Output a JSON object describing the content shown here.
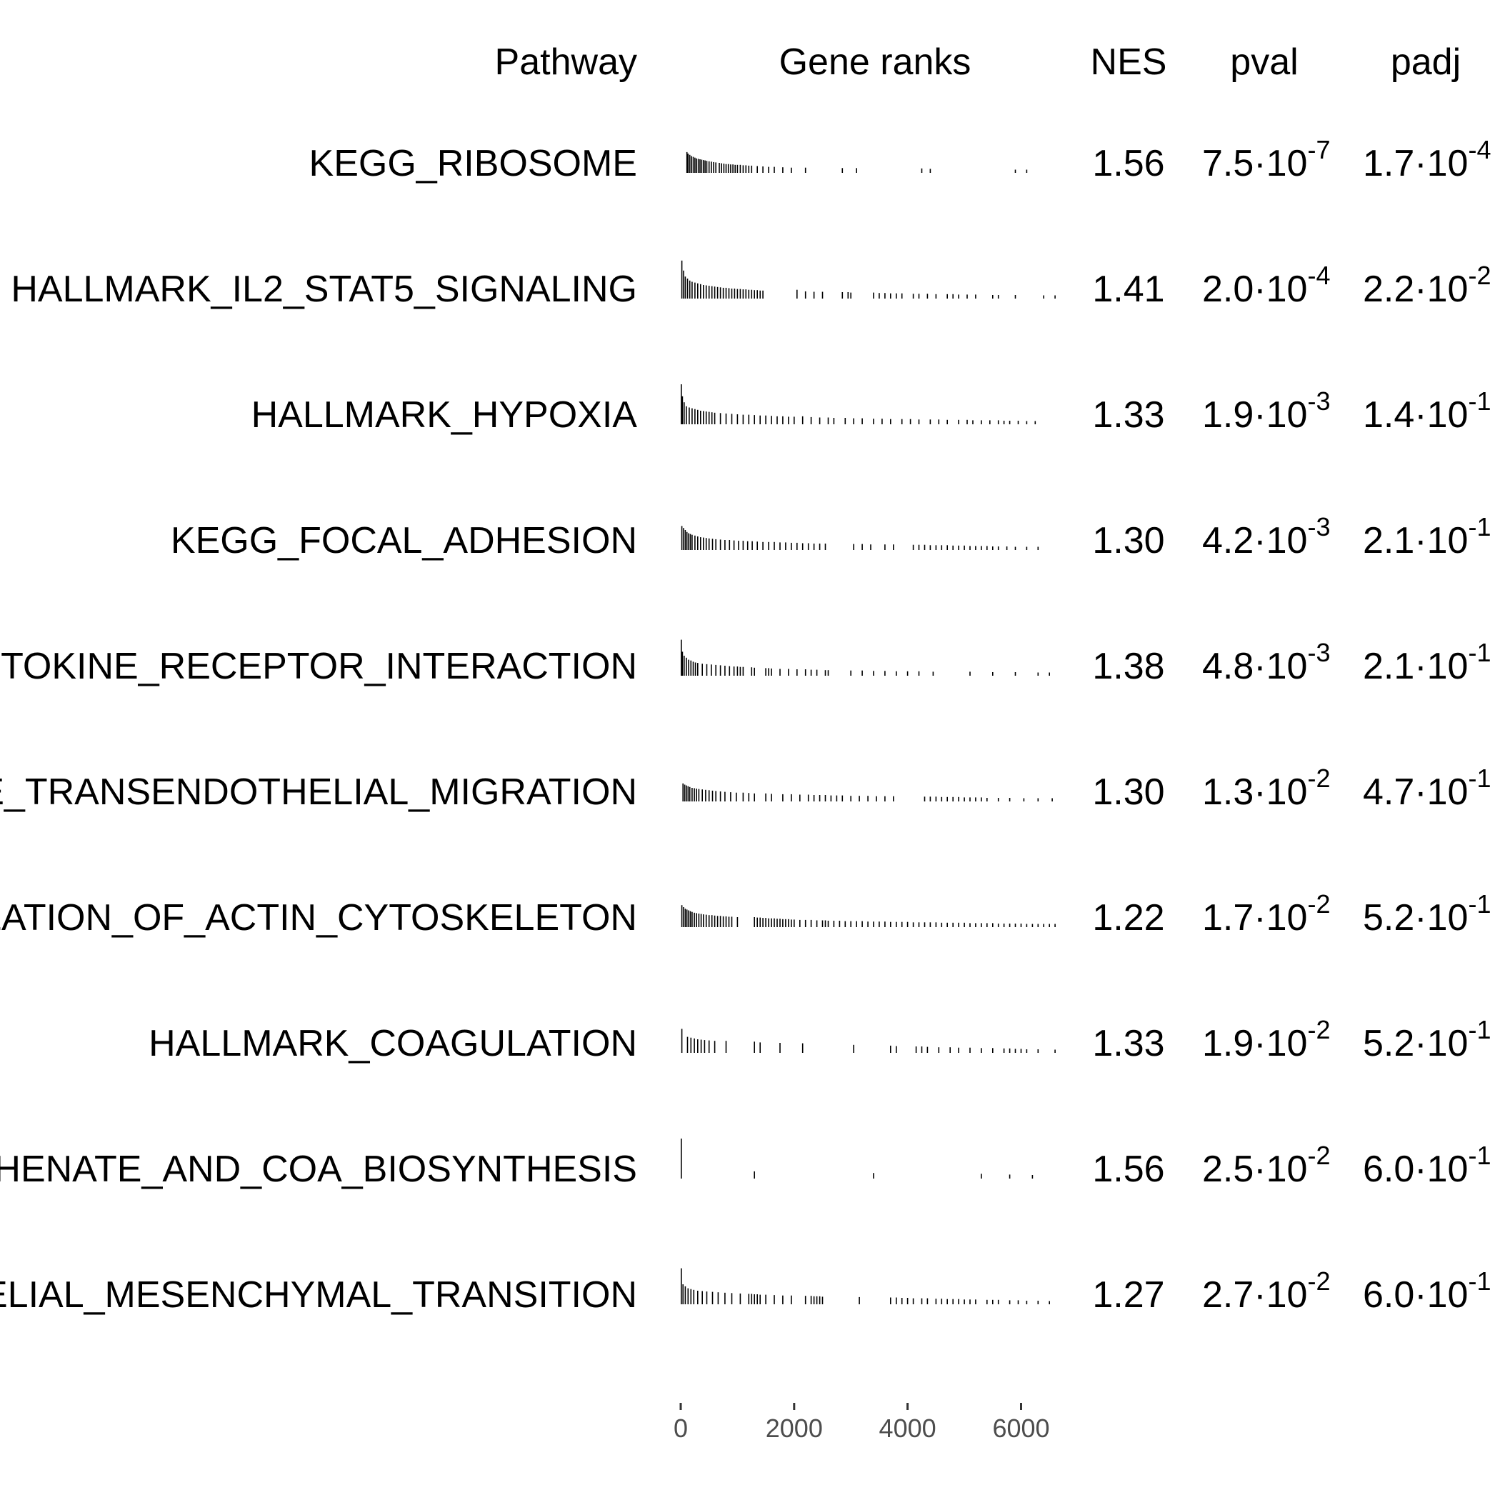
{
  "chart_data": {
    "type": "table",
    "columns": {
      "pathway": "Pathway",
      "gene_ranks": "Gene ranks",
      "nes": "NES",
      "pval": "pval",
      "padj": "padj"
    },
    "x_axis": {
      "ticks": [
        0,
        2000,
        4000,
        6000
      ],
      "range": [
        0,
        6800
      ]
    },
    "rows": [
      {
        "pathway": "KEGG_RIBOSOME",
        "nes": "1.56",
        "pval": {
          "mantissa": "7.5·10",
          "exp": "-7"
        },
        "padj": {
          "mantissa": "1.7·10",
          "exp": "-4"
        },
        "ranks": [
          110,
          130,
          160,
          190,
          220,
          250,
          280,
          310,
          340,
          370,
          400,
          430,
          460,
          500,
          540,
          580,
          620,
          680,
          720,
          760,
          800,
          840,
          880,
          920,
          960,
          1000,
          1050,
          1100,
          1150,
          1200,
          1250,
          1350,
          1450,
          1550,
          1650,
          1800,
          1950,
          2200,
          2850,
          3100,
          4250,
          4400,
          5900,
          6100
        ],
        "heights": [
          0.52,
          0.48,
          0.45,
          0.42,
          0.4,
          0.38,
          0.36,
          0.35,
          0.34,
          0.33,
          0.32,
          0.31,
          0.3,
          0.29,
          0.28,
          0.27,
          0.26,
          0.25,
          0.24,
          0.23,
          0.22,
          0.22,
          0.21,
          0.21,
          0.2,
          0.2,
          0.2,
          0.19,
          0.19,
          0.18,
          0.18,
          0.17,
          0.16,
          0.15,
          0.15,
          0.14,
          0.13,
          0.13,
          0.12,
          0.12,
          0.11,
          0.1,
          0.08,
          0.08
        ]
      },
      {
        "pathway": "HALLMARK_IL2_STAT5_SIGNALING",
        "nes": "1.41",
        "pval": {
          "mantissa": "2.0·10",
          "exp": "-4"
        },
        "padj": {
          "mantissa": "2.2·10",
          "exp": "-2"
        },
        "ranks": [
          20,
          50,
          80,
          120,
          160,
          200,
          250,
          300,
          350,
          400,
          450,
          500,
          550,
          600,
          650,
          700,
          750,
          800,
          850,
          900,
          950,
          1000,
          1050,
          1100,
          1150,
          1200,
          1250,
          1300,
          1350,
          1400,
          1450,
          2050,
          2200,
          2350,
          2500,
          2850,
          2950,
          3000,
          3400,
          3500,
          3600,
          3700,
          3800,
          3900,
          4100,
          4200,
          4350,
          4500,
          4700,
          4800,
          4900,
          5050,
          5200,
          5500,
          5600,
          5900,
          6400,
          6600
        ],
        "heights": [
          0.95,
          0.7,
          0.55,
          0.5,
          0.45,
          0.42,
          0.4,
          0.38,
          0.36,
          0.34,
          0.33,
          0.32,
          0.31,
          0.3,
          0.29,
          0.28,
          0.27,
          0.27,
          0.26,
          0.25,
          0.25,
          0.24,
          0.24,
          0.23,
          0.23,
          0.22,
          0.22,
          0.21,
          0.21,
          0.2,
          0.2,
          0.22,
          0.18,
          0.17,
          0.17,
          0.16,
          0.16,
          0.15,
          0.15,
          0.14,
          0.14,
          0.13,
          0.13,
          0.13,
          0.12,
          0.12,
          0.12,
          0.11,
          0.11,
          0.11,
          0.1,
          0.1,
          0.1,
          0.09,
          0.09,
          0.09,
          0.08,
          0.08
        ]
      },
      {
        "pathway": "HALLMARK_HYPOXIA",
        "nes": "1.33",
        "pval": {
          "mantissa": "1.9·10",
          "exp": "-3"
        },
        "padj": {
          "mantissa": "1.4·10",
          "exp": "-1"
        },
        "ranks": [
          10,
          30,
          60,
          100,
          150,
          200,
          250,
          300,
          350,
          400,
          450,
          500,
          550,
          600,
          700,
          800,
          900,
          1000,
          1100,
          1200,
          1300,
          1400,
          1500,
          1600,
          1700,
          1800,
          1900,
          2000,
          2150,
          2300,
          2450,
          2600,
          2700,
          2900,
          3050,
          3200,
          3400,
          3550,
          3700,
          3900,
          4050,
          4200,
          4400,
          4550,
          4700,
          4900,
          5050,
          5150,
          5300,
          5450,
          5600,
          5700,
          5800,
          5950,
          6100,
          6250
        ],
        "heights": [
          1.0,
          0.7,
          0.55,
          0.45,
          0.42,
          0.4,
          0.38,
          0.36,
          0.34,
          0.33,
          0.32,
          0.31,
          0.3,
          0.29,
          0.28,
          0.27,
          0.26,
          0.25,
          0.24,
          0.24,
          0.23,
          0.22,
          0.22,
          0.21,
          0.2,
          0.2,
          0.19,
          0.19,
          0.2,
          0.18,
          0.17,
          0.17,
          0.16,
          0.16,
          0.15,
          0.15,
          0.14,
          0.14,
          0.13,
          0.13,
          0.13,
          0.12,
          0.12,
          0.12,
          0.11,
          0.11,
          0.11,
          0.1,
          0.1,
          0.1,
          0.1,
          0.09,
          0.09,
          0.09,
          0.08,
          0.08
        ]
      },
      {
        "pathway": "KEGG_FOCAL_ADHESION",
        "nes": "1.30",
        "pval": {
          "mantissa": "4.2·10",
          "exp": "-3"
        },
        "padj": {
          "mantissa": "2.1·10",
          "exp": "-1"
        },
        "ranks": [
          20,
          50,
          80,
          110,
          140,
          170,
          200,
          250,
          300,
          350,
          400,
          450,
          500,
          560,
          620,
          700,
          780,
          860,
          940,
          1020,
          1100,
          1180,
          1260,
          1350,
          1450,
          1550,
          1650,
          1750,
          1850,
          1950,
          2050,
          2150,
          2250,
          2350,
          2450,
          2550,
          3050,
          3200,
          3350,
          3600,
          3750,
          4100,
          4200,
          4300,
          4400,
          4500,
          4600,
          4700,
          4800,
          4900,
          5000,
          5100,
          5200,
          5300,
          5400,
          5500,
          5600,
          5750,
          5900,
          6100,
          6300
        ],
        "heights": [
          0.6,
          0.55,
          0.5,
          0.45,
          0.42,
          0.4,
          0.38,
          0.36,
          0.34,
          0.32,
          0.31,
          0.3,
          0.29,
          0.28,
          0.27,
          0.26,
          0.25,
          0.25,
          0.24,
          0.23,
          0.23,
          0.22,
          0.22,
          0.21,
          0.2,
          0.2,
          0.2,
          0.19,
          0.19,
          0.18,
          0.18,
          0.17,
          0.17,
          0.16,
          0.16,
          0.16,
          0.15,
          0.15,
          0.14,
          0.14,
          0.14,
          0.13,
          0.13,
          0.13,
          0.12,
          0.12,
          0.12,
          0.12,
          0.11,
          0.11,
          0.11,
          0.1,
          0.1,
          0.1,
          0.1,
          0.09,
          0.09,
          0.09,
          0.08,
          0.08,
          0.08
        ]
      },
      {
        "pathway": "KEGG_CYTOKINE_CYTOKINE_RECEPTOR_INTERACTION",
        "nes": "1.38",
        "pval": {
          "mantissa": "4.8·10",
          "exp": "-3"
        },
        "padj": {
          "mantissa": "2.1·10",
          "exp": "-1"
        },
        "ranks": [
          10,
          30,
          60,
          100,
          140,
          180,
          220,
          260,
          300,
          380,
          460,
          540,
          620,
          700,
          780,
          860,
          940,
          1000,
          1050,
          1100,
          1250,
          1300,
          1500,
          1550,
          1600,
          1750,
          1900,
          2050,
          2200,
          2300,
          2400,
          2550,
          2600,
          3000,
          3200,
          3400,
          3600,
          3800,
          4000,
          4200,
          4450,
          5100,
          5500,
          5900,
          6300,
          6500
        ],
        "heights": [
          0.9,
          0.6,
          0.5,
          0.45,
          0.4,
          0.38,
          0.35,
          0.33,
          0.32,
          0.3,
          0.29,
          0.28,
          0.27,
          0.26,
          0.25,
          0.24,
          0.23,
          0.23,
          0.22,
          0.22,
          0.21,
          0.2,
          0.19,
          0.19,
          0.18,
          0.17,
          0.17,
          0.16,
          0.16,
          0.15,
          0.15,
          0.14,
          0.14,
          0.13,
          0.13,
          0.12,
          0.12,
          0.11,
          0.11,
          0.11,
          0.1,
          0.1,
          0.09,
          0.09,
          0.08,
          0.08
        ]
      },
      {
        "pathway": "KEGG_LEUKOCYTE_TRANSENDOTHELIAL_MIGRATION",
        "nes": "1.30",
        "pval": {
          "mantissa": "1.3·10",
          "exp": "-2"
        },
        "padj": {
          "mantissa": "4.7·10",
          "exp": "-1"
        },
        "ranks": [
          40,
          70,
          100,
          130,
          160,
          200,
          240,
          280,
          320,
          380,
          440,
          500,
          560,
          620,
          700,
          780,
          880,
          980,
          1100,
          1200,
          1300,
          1500,
          1600,
          1800,
          1950,
          2100,
          2250,
          2350,
          2450,
          2550,
          2650,
          2750,
          2850,
          3000,
          3150,
          3300,
          3450,
          3600,
          3750,
          4300,
          4400,
          4500,
          4600,
          4700,
          4800,
          4900,
          5000,
          5100,
          5200,
          5300,
          5400,
          5600,
          5800,
          6050,
          6300,
          6550
        ],
        "heights": [
          0.45,
          0.42,
          0.4,
          0.38,
          0.36,
          0.34,
          0.33,
          0.32,
          0.31,
          0.3,
          0.29,
          0.28,
          0.27,
          0.26,
          0.25,
          0.24,
          0.23,
          0.22,
          0.22,
          0.21,
          0.2,
          0.2,
          0.19,
          0.18,
          0.18,
          0.17,
          0.17,
          0.16,
          0.16,
          0.16,
          0.15,
          0.15,
          0.15,
          0.14,
          0.14,
          0.14,
          0.13,
          0.13,
          0.13,
          0.12,
          0.12,
          0.12,
          0.11,
          0.11,
          0.11,
          0.11,
          0.1,
          0.1,
          0.1,
          0.1,
          0.09,
          0.09,
          0.09,
          0.08,
          0.08,
          0.08
        ]
      },
      {
        "pathway": "KEGG_REGULATION_OF_ACTIN_CYTOSKELETON",
        "nes": "1.22",
        "pval": {
          "mantissa": "1.7·10",
          "exp": "-2"
        },
        "padj": {
          "mantissa": "5.2·10",
          "exp": "-1"
        },
        "ranks": [
          20,
          50,
          80,
          110,
          140,
          170,
          200,
          240,
          280,
          320,
          360,
          400,
          450,
          500,
          550,
          600,
          650,
          700,
          750,
          800,
          850,
          900,
          1000,
          1300,
          1350,
          1400,
          1450,
          1500,
          1550,
          1600,
          1650,
          1700,
          1750,
          1800,
          1850,
          1900,
          1950,
          2000,
          2100,
          2200,
          2300,
          2400,
          2500,
          2550,
          2600,
          2700,
          2800,
          2900,
          3000,
          3100,
          3200,
          3300,
          3400,
          3500,
          3600,
          3700,
          3800,
          3900,
          4000,
          4100,
          4200,
          4300,
          4400,
          4500,
          4600,
          4700,
          4800,
          4900,
          5000,
          5100,
          5200,
          5300,
          5400,
          5500,
          5600,
          5700,
          5800,
          5900,
          6000,
          6100,
          6200,
          6300,
          6400,
          6500,
          6600
        ],
        "heights": [
          0.55,
          0.5,
          0.46,
          0.44,
          0.42,
          0.4,
          0.38,
          0.36,
          0.35,
          0.34,
          0.33,
          0.32,
          0.31,
          0.3,
          0.3,
          0.29,
          0.28,
          0.28,
          0.27,
          0.27,
          0.26,
          0.26,
          0.25,
          0.25,
          0.24,
          0.24,
          0.23,
          0.23,
          0.22,
          0.22,
          0.22,
          0.21,
          0.21,
          0.2,
          0.2,
          0.2,
          0.19,
          0.19,
          0.18,
          0.18,
          0.18,
          0.17,
          0.17,
          0.17,
          0.16,
          0.16,
          0.16,
          0.15,
          0.15,
          0.15,
          0.15,
          0.14,
          0.14,
          0.14,
          0.14,
          0.13,
          0.13,
          0.13,
          0.13,
          0.12,
          0.12,
          0.12,
          0.12,
          0.12,
          0.11,
          0.11,
          0.11,
          0.11,
          0.11,
          0.1,
          0.1,
          0.1,
          0.1,
          0.1,
          0.09,
          0.09,
          0.09,
          0.09,
          0.09,
          0.08,
          0.08,
          0.08,
          0.08,
          0.08,
          0.08
        ]
      },
      {
        "pathway": "HALLMARK_COAGULATION",
        "nes": "1.33",
        "pval": {
          "mantissa": "1.9·10",
          "exp": "-2"
        },
        "padj": {
          "mantissa": "5.2·10",
          "exp": "-1"
        },
        "ranks": [
          20,
          120,
          180,
          240,
          300,
          360,
          420,
          500,
          600,
          800,
          1300,
          1400,
          1750,
          2150,
          3050,
          3700,
          3800,
          4150,
          4250,
          4350,
          4550,
          4750,
          4900,
          5100,
          5300,
          5500,
          5700,
          5800,
          5900,
          6000,
          6100,
          6300,
          6600
        ],
        "heights": [
          0.6,
          0.4,
          0.38,
          0.36,
          0.34,
          0.33,
          0.32,
          0.31,
          0.3,
          0.3,
          0.28,
          0.26,
          0.25,
          0.24,
          0.2,
          0.18,
          0.17,
          0.16,
          0.16,
          0.15,
          0.14,
          0.14,
          0.13,
          0.13,
          0.12,
          0.12,
          0.11,
          0.11,
          0.1,
          0.1,
          0.09,
          0.09,
          0.08
        ]
      },
      {
        "pathway": "KEGG_PANTOTHENATE_AND_COA_BIOSYNTHESIS",
        "nes": "1.56",
        "pval": {
          "mantissa": "2.5·10",
          "exp": "-2"
        },
        "padj": {
          "mantissa": "6.0·10",
          "exp": "-1"
        },
        "ranks": [
          10,
          1300,
          3400,
          5300,
          5800,
          6200
        ],
        "heights": [
          1.0,
          0.18,
          0.14,
          0.12,
          0.1,
          0.09
        ]
      },
      {
        "pathway": "HALLMARK_EPITHELIAL_MESENCHYMAL_TRANSITION",
        "nes": "1.27",
        "pval": {
          "mantissa": "2.7·10",
          "exp": "-2"
        },
        "padj": {
          "mantissa": "6.0·10",
          "exp": "-1"
        },
        "ranks": [
          10,
          40,
          80,
          130,
          180,
          230,
          300,
          380,
          460,
          560,
          660,
          780,
          900,
          1050,
          1200,
          1250,
          1300,
          1350,
          1400,
          1500,
          1650,
          1800,
          1950,
          2200,
          2300,
          2350,
          2400,
          2450,
          2500,
          3150,
          3700,
          3800,
          3900,
          4000,
          4100,
          4250,
          4350,
          4500,
          4600,
          4700,
          4800,
          4900,
          5000,
          5100,
          5200,
          5400,
          5500,
          5600,
          5800,
          5950,
          6100,
          6300,
          6500
        ],
        "heights": [
          0.9,
          0.5,
          0.45,
          0.4,
          0.38,
          0.36,
          0.34,
          0.33,
          0.32,
          0.31,
          0.3,
          0.29,
          0.28,
          0.27,
          0.26,
          0.26,
          0.25,
          0.25,
          0.24,
          0.24,
          0.23,
          0.22,
          0.22,
          0.21,
          0.21,
          0.2,
          0.2,
          0.2,
          0.19,
          0.18,
          0.17,
          0.17,
          0.16,
          0.16,
          0.15,
          0.15,
          0.15,
          0.14,
          0.14,
          0.13,
          0.13,
          0.13,
          0.12,
          0.12,
          0.12,
          0.11,
          0.11,
          0.11,
          0.1,
          0.1,
          0.09,
          0.09,
          0.08
        ]
      }
    ]
  }
}
